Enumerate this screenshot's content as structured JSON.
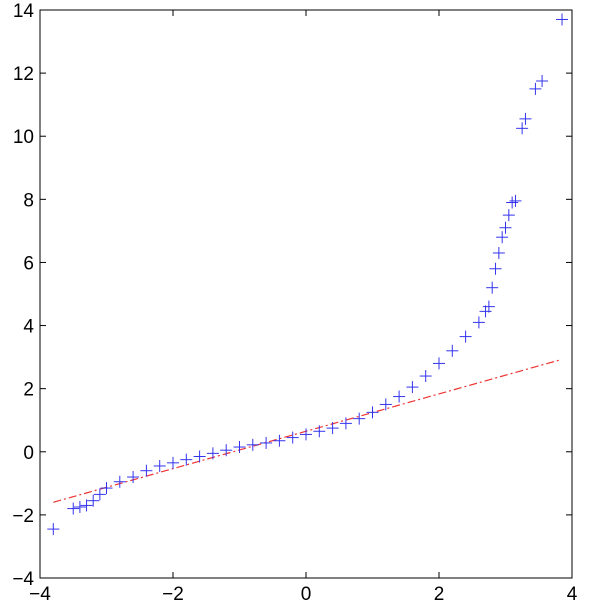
{
  "chart_data": {
    "type": "scatter",
    "title": "",
    "xlabel": "",
    "ylabel": "",
    "xlim": [
      -4,
      4
    ],
    "ylim": [
      -4,
      14
    ],
    "xticks": [
      "−4",
      "−2",
      "0",
      "2",
      "4"
    ],
    "yticks": [
      "−4",
      "−2",
      "0",
      "2",
      "4",
      "6",
      "8",
      "10",
      "12",
      "14"
    ],
    "grid": false,
    "legend": "none",
    "marker": "plus",
    "colors": {
      "points": "#3333ee",
      "reference_line": "#ee3333",
      "axes": "#000000"
    },
    "series": [
      {
        "x": [
          -3.8,
          -3.5,
          -3.4,
          -3.3,
          -3.2,
          -3.1,
          -3.0,
          -2.8,
          -2.6,
          -2.4,
          -2.2,
          -2.0,
          -1.8,
          -1.6,
          -1.4,
          -1.2,
          -1.0,
          -0.8,
          -0.6,
          -0.4,
          -0.2,
          0.0,
          0.2,
          0.4,
          0.6,
          0.8,
          1.0,
          1.2,
          1.4,
          1.6,
          1.8,
          2.0,
          2.2,
          2.4,
          2.6,
          2.7,
          2.75,
          2.8,
          2.85,
          2.9,
          2.95,
          3.0,
          3.05,
          3.1,
          3.15,
          3.25,
          3.3,
          3.45,
          3.55,
          3.85
        ],
        "y": [
          -2.45,
          -1.8,
          -1.75,
          -1.7,
          -1.55,
          -1.35,
          -1.15,
          -0.95,
          -0.8,
          -0.6,
          -0.45,
          -0.35,
          -0.25,
          -0.15,
          -0.05,
          0.05,
          0.15,
          0.22,
          0.28,
          0.35,
          0.45,
          0.55,
          0.65,
          0.75,
          0.9,
          1.05,
          1.25,
          1.5,
          1.75,
          2.05,
          2.4,
          2.8,
          3.2,
          3.65,
          4.1,
          4.45,
          4.6,
          5.2,
          5.8,
          6.3,
          6.8,
          7.1,
          7.5,
          7.9,
          7.95,
          10.25,
          10.55,
          11.5,
          11.75,
          13.7
        ]
      }
    ],
    "reference_line": {
      "style": "dash-dot",
      "x": [
        -3.8,
        3.8
      ],
      "y": [
        -1.6,
        2.9
      ]
    }
  }
}
